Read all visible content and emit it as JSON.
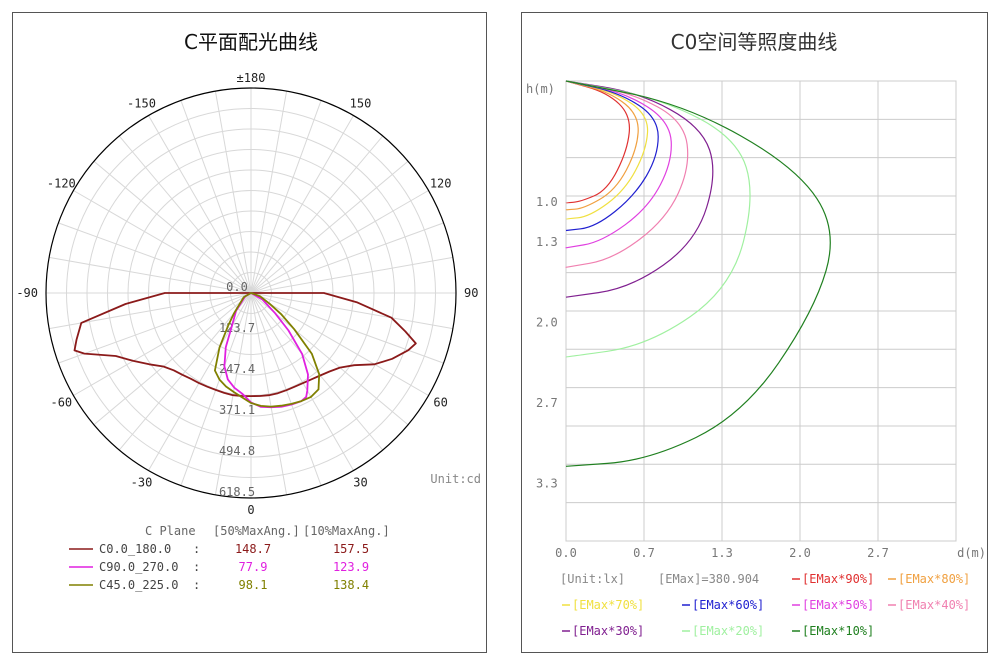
{
  "chart_data": [
    {
      "type": "polar",
      "title": "C平面配光曲线",
      "angle_labels": [
        {
          "angle": 180,
          "label": "±180"
        },
        {
          "angle": -150,
          "label": "-150"
        },
        {
          "angle": 150,
          "label": "150"
        },
        {
          "angle": -120,
          "label": "-120"
        },
        {
          "angle": 120,
          "label": "120"
        },
        {
          "angle": -90,
          "label": "-90"
        },
        {
          "angle": 90,
          "label": "90"
        },
        {
          "angle": -60,
          "label": "-60"
        },
        {
          "angle": 60,
          "label": "60"
        },
        {
          "angle": -30,
          "label": "-30"
        },
        {
          "angle": 30,
          "label": "30"
        },
        {
          "angle": 0,
          "label": "0"
        }
      ],
      "radial_ticks": [
        "0.0",
        "123.7",
        "247.4",
        "371.1",
        "494.8",
        "618.5"
      ],
      "rmax": 618.5,
      "unit_label": "Unit:cd",
      "legend_header": {
        "plane": "C Plane",
        "col1": "[50%MaxAng.]",
        "col2": "[10%MaxAng.]"
      },
      "series": [
        {
          "name": "C0.0_180.0",
          "sep": ":",
          "col1": "148.7",
          "col2": "157.5",
          "color": "#8b1a1a",
          "points": [
            [
              -90,
              260
            ],
            [
              -85,
              380
            ],
            [
              -80,
              520
            ],
            [
              -75,
              545
            ],
            [
              -72,
              560
            ],
            [
              -70,
              535
            ],
            [
              -65,
              450
            ],
            [
              -60,
              410
            ],
            [
              -55,
              375
            ],
            [
              -50,
              345
            ],
            [
              -45,
              330
            ],
            [
              -40,
              322
            ],
            [
              -35,
              316
            ],
            [
              -30,
              314
            ],
            [
              -25,
              312
            ],
            [
              -20,
              311
            ],
            [
              -15,
              312
            ],
            [
              -10,
              313
            ],
            [
              -5,
              312
            ],
            [
              0,
              311
            ],
            [
              5,
              312
            ],
            [
              10,
              313
            ],
            [
              15,
              313
            ],
            [
              20,
              312
            ],
            [
              25,
              312
            ],
            [
              30,
              314
            ],
            [
              35,
              318
            ],
            [
              40,
              325
            ],
            [
              45,
              335
            ],
            [
              50,
              350
            ],
            [
              55,
              380
            ],
            [
              60,
              430
            ],
            [
              65,
              470
            ],
            [
              70,
              505
            ],
            [
              73,
              520
            ],
            [
              76,
              480
            ],
            [
              80,
              430
            ],
            [
              85,
              320
            ],
            [
              90,
              220
            ]
          ]
        },
        {
          "name": "C90.0_270.0",
          "sep": ":",
          "col1": "77.9",
          "col2": "123.9",
          "color": "#e020e0",
          "points": [
            [
              -90,
              0
            ],
            [
              -60,
              20
            ],
            [
              -40,
              70
            ],
            [
              -30,
              115
            ],
            [
              -25,
              180
            ],
            [
              -20,
              235
            ],
            [
              -15,
              270
            ],
            [
              -10,
              290
            ],
            [
              -5,
              305
            ],
            [
              0,
              330
            ],
            [
              5,
              345
            ],
            [
              10,
              350
            ],
            [
              15,
              355
            ],
            [
              20,
              358
            ],
            [
              25,
              360
            ],
            [
              28,
              355
            ],
            [
              30,
              340
            ],
            [
              35,
              300
            ],
            [
              40,
              240
            ],
            [
              45,
              160
            ],
            [
              50,
              95
            ],
            [
              60,
              40
            ],
            [
              90,
              0
            ]
          ]
        },
        {
          "name": "C45.0_225.0",
          "sep": ":",
          "col1": "98.1",
          "col2": "138.4",
          "color": "#808000",
          "points": [
            [
              -90,
              0
            ],
            [
              -60,
              25
            ],
            [
              -40,
              80
            ],
            [
              -35,
              120
            ],
            [
              -30,
              190
            ],
            [
              -25,
              258
            ],
            [
              -20,
              278
            ],
            [
              -15,
              292
            ],
            [
              -10,
              303
            ],
            [
              -5,
              316
            ],
            [
              0,
              332
            ],
            [
              5,
              342
            ],
            [
              10,
              348
            ],
            [
              15,
              352
            ],
            [
              20,
              356
            ],
            [
              25,
              360
            ],
            [
              30,
              362
            ],
            [
              35,
              355
            ],
            [
              40,
              320
            ],
            [
              45,
              260
            ],
            [
              50,
              170
            ],
            [
              55,
              110
            ],
            [
              60,
              65
            ],
            [
              70,
              30
            ],
            [
              90,
              0
            ]
          ]
        }
      ]
    },
    {
      "type": "line",
      "title": "C0空间等照度曲线",
      "xlabel": "d(m)",
      "ylabel": "h(m)",
      "x_ticks": [
        "0.0",
        "0.7",
        "1.3",
        "2.0",
        "2.7"
      ],
      "y_ticks": [
        "1.0",
        "1.3",
        "2.0",
        "2.7",
        "3.3"
      ],
      "xlim": [
        0,
        3.3
      ],
      "ylim": [
        0,
        4.0
      ],
      "unit": "[Unit:lx]",
      "emax": "[EMax]=380.904",
      "series": [
        {
          "name": "[EMax*90%]",
          "color": "#e03030",
          "points": [
            [
              0,
              0
            ],
            [
              0.35,
              0.1
            ],
            [
              0.55,
              0.3
            ],
            [
              0.52,
              0.6
            ],
            [
              0.35,
              0.95
            ],
            [
              0.12,
              1.05
            ],
            [
              0,
              1.06
            ]
          ]
        },
        {
          "name": "[EMax*80%]",
          "color": "#f0a040",
          "points": [
            [
              0,
              0
            ],
            [
              0.38,
              0.1
            ],
            [
              0.62,
              0.3
            ],
            [
              0.6,
              0.6
            ],
            [
              0.42,
              0.95
            ],
            [
              0.15,
              1.11
            ],
            [
              0,
              1.12
            ]
          ]
        },
        {
          "name": "[EMax*70%]",
          "color": "#f0e040",
          "points": [
            [
              0,
              0
            ],
            [
              0.42,
              0.1
            ],
            [
              0.7,
              0.3
            ],
            [
              0.68,
              0.6
            ],
            [
              0.5,
              0.95
            ],
            [
              0.2,
              1.18
            ],
            [
              0,
              1.2
            ]
          ]
        },
        {
          "name": "[EMax*60%]",
          "color": "#2020d0",
          "points": [
            [
              0,
              0
            ],
            [
              0.45,
              0.1
            ],
            [
              0.78,
              0.32
            ],
            [
              0.78,
              0.65
            ],
            [
              0.58,
              1.0
            ],
            [
              0.25,
              1.27
            ],
            [
              0,
              1.3
            ]
          ]
        },
        {
          "name": "[EMax*50%]",
          "color": "#e040e0",
          "points": [
            [
              0,
              0
            ],
            [
              0.5,
              0.1
            ],
            [
              0.88,
              0.35
            ],
            [
              0.9,
              0.7
            ],
            [
              0.7,
              1.1
            ],
            [
              0.3,
              1.4
            ],
            [
              0,
              1.45
            ]
          ]
        },
        {
          "name": "[EMax*40%]",
          "color": "#f080b0",
          "points": [
            [
              0,
              0
            ],
            [
              0.55,
              0.1
            ],
            [
              1.0,
              0.35
            ],
            [
              1.05,
              0.75
            ],
            [
              0.85,
              1.2
            ],
            [
              0.4,
              1.55
            ],
            [
              0,
              1.62
            ]
          ]
        },
        {
          "name": "[EMax*30%]",
          "color": "#802090",
          "points": [
            [
              0,
              0
            ],
            [
              0.62,
              0.1
            ],
            [
              1.15,
              0.4
            ],
            [
              1.28,
              0.8
            ],
            [
              1.1,
              1.4
            ],
            [
              0.55,
              1.8
            ],
            [
              0,
              1.88
            ]
          ]
        },
        {
          "name": "[EMax*20%]",
          "color": "#a0f0a0",
          "points": [
            [
              0,
              0
            ],
            [
              0.8,
              0.15
            ],
            [
              1.45,
              0.5
            ],
            [
              1.6,
              1.0
            ],
            [
              1.4,
              1.8
            ],
            [
              0.7,
              2.3
            ],
            [
              0,
              2.4
            ]
          ]
        },
        {
          "name": "[EMax*10%]",
          "color": "#208020",
          "points": [
            [
              0,
              0
            ],
            [
              1.0,
              0.2
            ],
            [
              1.95,
              0.75
            ],
            [
              2.3,
              1.3
            ],
            [
              2.1,
              2.0
            ],
            [
              1.5,
              2.9
            ],
            [
              0.7,
              3.3
            ],
            [
              0,
              3.35
            ]
          ]
        }
      ]
    }
  ]
}
